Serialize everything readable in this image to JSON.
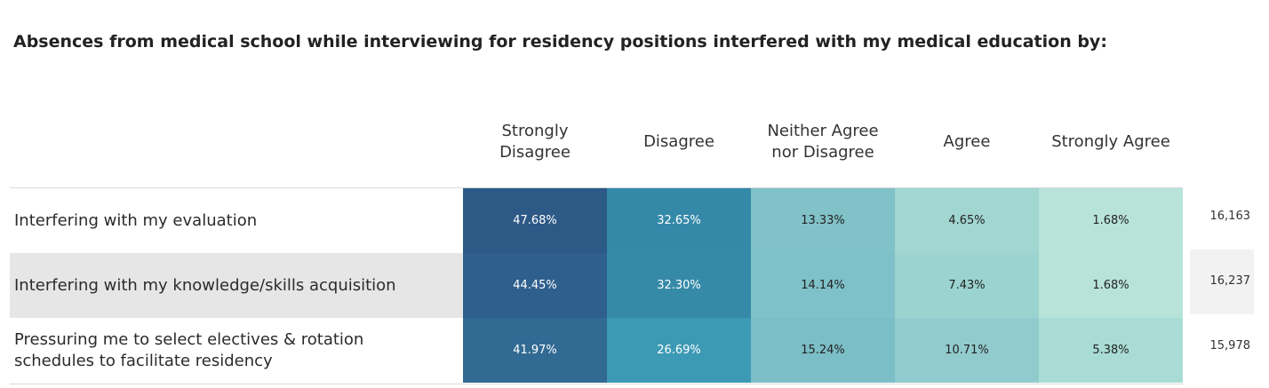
{
  "chart_data": {
    "type": "table",
    "title": "Absences from medical school while interviewing for residency positions interfered with my medical education by:",
    "columns": [
      {
        "lines": [
          "Strongly",
          "Disagree"
        ]
      },
      {
        "lines": [
          "Disagree"
        ]
      },
      {
        "lines": [
          "Neither Agree",
          "nor Disagree"
        ]
      },
      {
        "lines": [
          "Agree"
        ]
      },
      {
        "lines": [
          "Strongly Agree"
        ]
      }
    ],
    "rows": [
      {
        "label_lines": [
          "Interfering with my evaluation"
        ],
        "values": [
          "47.68%",
          "32.65%",
          "13.33%",
          "4.65%",
          "1.68%"
        ],
        "fills": [
          "#2d5986",
          "#3589a8",
          "#80c2c8",
          "#a1d6d1",
          "#b8e3d8"
        ],
        "text_colors": [
          "#ffffff",
          "#ffffff",
          "#222222",
          "#222222",
          "#222222"
        ],
        "total": "16,163",
        "band": "#ffffff",
        "total_band": "#ffffff"
      },
      {
        "label_lines": [
          "Interfering with my knowledge/skills acquisition"
        ],
        "values": [
          "44.45%",
          "32.30%",
          "14.14%",
          "7.43%",
          "1.68%"
        ],
        "fills": [
          "#2f5f8c",
          "#358aa8",
          "#7fc1c8",
          "#9ad3cf",
          "#b8e3d8"
        ],
        "text_colors": [
          "#ffffff",
          "#ffffff",
          "#222222",
          "#222222",
          "#222222"
        ],
        "total": "16,237",
        "band": "#e6e6e6",
        "total_band": "#f2f2f2"
      },
      {
        "label_lines": [
          "Pressuring me to select electives & rotation",
          "schedules to facilitate residency"
        ],
        "values": [
          "41.97%",
          "26.69%",
          "15.24%",
          "10.71%",
          "5.38%"
        ],
        "fills": [
          "#316a93",
          "#3d9ab5",
          "#7bbec7",
          "#91cbcd",
          "#a9dcd5"
        ],
        "text_colors": [
          "#ffffff",
          "#ffffff",
          "#222222",
          "#222222",
          "#222222"
        ],
        "total": "15,978",
        "band": "#ffffff",
        "total_band": "#ffffff"
      }
    ]
  }
}
